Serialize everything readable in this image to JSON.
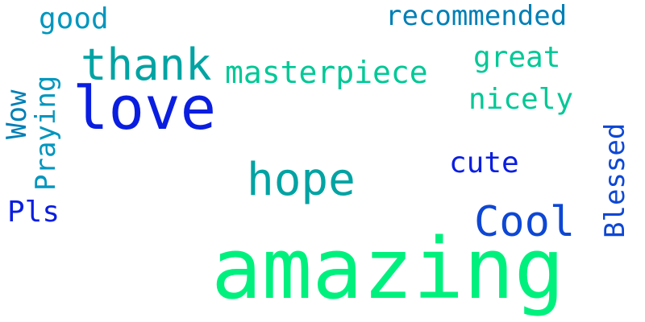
{
  "colors": {
    "background": "#ffffff",
    "blue": "#0a1ee0",
    "teal": "#00a3a3",
    "mint": "#00f07e",
    "green": "#00c896",
    "ocean": "#007fb6",
    "royal": "#0d47d4",
    "cyan": "#0096be"
  },
  "words": {
    "love": "love",
    "amazing": "amazing",
    "thank": "thank",
    "hope": "hope",
    "cool": "Cool",
    "masterpiece": "masterpiece",
    "recommended": "recommended",
    "good": "good",
    "great": "great",
    "nicely": "nicely",
    "cute": "cute",
    "pls": "Pls",
    "wow": "Wow",
    "praying": "Praying",
    "blessed": "Blessed"
  }
}
